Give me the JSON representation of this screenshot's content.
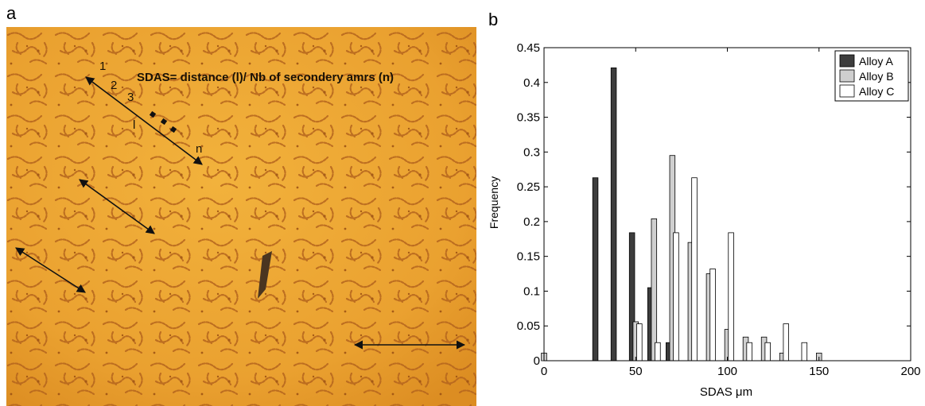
{
  "panel_a": {
    "letter": "a",
    "annotation": "SDAS= distance (l)/ Nb of secondery amrs (n)",
    "arm_labels": [
      "1",
      "2",
      "3",
      "l",
      "n"
    ]
  },
  "panel_b": {
    "letter": "b"
  },
  "chart_data": {
    "type": "bar",
    "xlabel": "SDAS μm",
    "ylabel": "Frequency",
    "xlim": [
      0,
      200
    ],
    "ylim": [
      0,
      0.45
    ],
    "xticks": [
      0,
      50,
      100,
      150,
      200
    ],
    "yticks": [
      0,
      0.05,
      0.1,
      0.15,
      0.2,
      0.25,
      0.3,
      0.35,
      0.4,
      0.45
    ],
    "ytick_labels": [
      "0",
      "0.05",
      "0.1",
      "0.15",
      "0.2",
      "0.25",
      "0.3",
      "0.35",
      "0.4",
      "0.45"
    ],
    "grid": false,
    "legend_position": "top-right",
    "series": [
      {
        "name": "Alloy A",
        "color": "#3d3d3d",
        "x": [
          28,
          38,
          48,
          58,
          68
        ],
        "values": [
          0.263,
          0.421,
          0.184,
          0.105,
          0.026
        ]
      },
      {
        "name": "Alloy B",
        "color": "#cfcfcf",
        "x": [
          0,
          50,
          60,
          70,
          80,
          90,
          100,
          110,
          120,
          130,
          140,
          150
        ],
        "values": [
          0.011,
          0.056,
          0.204,
          0.295,
          0.17,
          0.125,
          0.045,
          0.034,
          0.034,
          0.011,
          0.0,
          0.011
        ]
      },
      {
        "name": "Alloy C",
        "color": "#ffffff",
        "x": [
          52,
          62,
          72,
          82,
          92,
          102,
          112,
          122,
          132,
          142
        ],
        "values": [
          0.053,
          0.026,
          0.184,
          0.263,
          0.132,
          0.184,
          0.026,
          0.026,
          0.053,
          0.026
        ]
      }
    ]
  }
}
